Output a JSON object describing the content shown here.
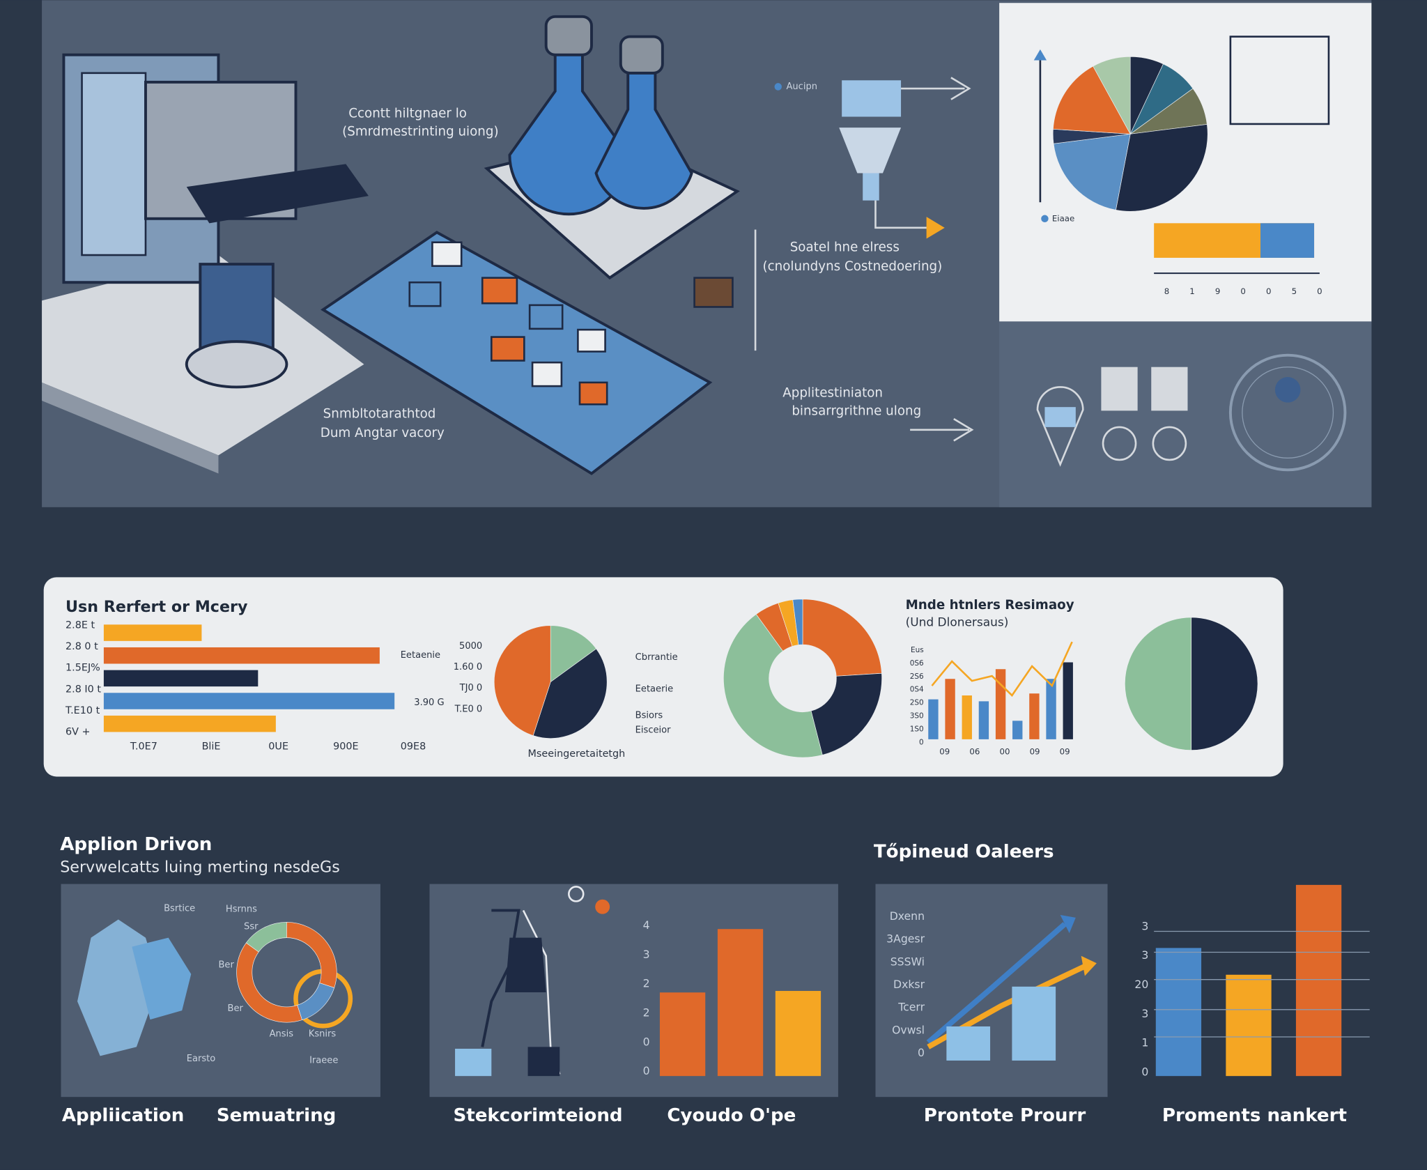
{
  "top": {
    "callouts": [
      [
        "Ccontt hiltgnaer lo",
        "(Smrdmestrinting uiong)"
      ],
      [
        "Soatel hne elress",
        "(cnolundyns Costnedoering)"
      ],
      [
        "Applitestiniaton",
        "binsarrgrithne ulong"
      ],
      [
        "Snmbltotarathtod",
        "Dum Angtar vacory"
      ]
    ],
    "funnel_label": "Aucipn",
    "pie_legend": "Eiaae",
    "pie": {
      "values": [
        7,
        8,
        8,
        30,
        20,
        3,
        16,
        8
      ],
      "colors": [
        "#1e2a44",
        "#2f6b86",
        "#6f7457",
        "#1e2a44",
        "#5a8fc4",
        "#2a3a5c",
        "#e0692a",
        "#a8c8a8"
      ]
    },
    "mini_axis": [
      "8",
      "1",
      "9",
      "0",
      "0",
      "5",
      "0"
    ]
  },
  "middle": {
    "title": "Usn Rerfert or Mcery",
    "bar_chart": {
      "ytick_labels": [
        "2.8E t",
        "2.8 0 t",
        "1.5EJ%",
        "2.8 I0 t",
        "T.E10 t",
        "6V +"
      ],
      "values": [
        33,
        93,
        52,
        98,
        58
      ],
      "colors": [
        "#f5a623",
        "#e0692a",
        "#1e2a44",
        "#4a88c8",
        "#f5a623"
      ],
      "xlim": [
        0,
        100
      ],
      "xtick_labels": [
        "T.0E7",
        "BliE",
        "0UE",
        "900E",
        "09E8"
      ],
      "annotations": [
        "Eetaenie",
        "3.90 G"
      ]
    },
    "pie": {
      "values": [
        15,
        40,
        45
      ],
      "colors": [
        "#8cbf9a",
        "#1e2a44",
        "#e0692a"
      ],
      "left_labels": [
        "5000",
        "1.60 0",
        "TJ0 0",
        "T.E0 0"
      ],
      "right_labels": [
        "Cbrrantie",
        "Eetaerie",
        "Bsiors",
        "Eisceior"
      ],
      "caption": "Mseeingeretaitetgh"
    },
    "donut": {
      "values": [
        24,
        22,
        44,
        5,
        3,
        2
      ],
      "colors": [
        "#e0692a",
        "#1e2a44",
        "#8cbf9a",
        "#e0692a",
        "#f5a623",
        "#4a88c8"
      ]
    },
    "combo": {
      "title": "Mnde htnlers Resimaoy",
      "subtitle": "(Und Dlonersaus)",
      "ytick_labels": [
        "Eus",
        "0S6",
        "2S6",
        "0S4",
        "2S0",
        "3S0",
        "1S0",
        "0"
      ],
      "xtick_labels": [
        "09",
        "06",
        "00",
        "09",
        "09"
      ],
      "values": [
        41,
        62,
        45,
        39,
        72,
        19,
        47,
        62,
        79
      ],
      "colors": [
        "#4a88c8",
        "#e0692a",
        "#f5a623",
        "#4a88c8",
        "#e0692a",
        "#4a88c8",
        "#e0692a",
        "#4a88c8",
        "#1e2a44"
      ],
      "line": [
        55,
        80,
        60,
        65,
        45,
        75,
        55,
        100
      ],
      "ylim": [
        0,
        100
      ]
    },
    "pie2": {
      "values": [
        50,
        50
      ],
      "colors": [
        "#8cbf9a",
        "#1e2a44"
      ]
    }
  },
  "bottom": {
    "heading": "Applion Drivon",
    "subheading": "Servwelcatts luing merting nesdeGs",
    "heading2": "Tőpineud Oaleers",
    "captions": [
      "Appliication",
      "Semuatring",
      "Stekcorimteiond",
      "Cyoudo O'pe",
      "Prontote Prourr",
      "Proments nankert"
    ],
    "panel1_labels": [
      "Bsrtice",
      "Hsrnns",
      "Ssr",
      "Ber",
      "Ber",
      "Ansis",
      "Ksnirs",
      "Earsto",
      "Iraeee"
    ],
    "panel1_donut": {
      "values": [
        40,
        15,
        30,
        15
      ],
      "colors": [
        "#e0692a",
        "#8cbf9a",
        "#e0692a",
        "#5a8fc4"
      ]
    },
    "chart1": {
      "ytick_labels": [
        "4",
        "3",
        "2",
        "2",
        "0",
        "0"
      ],
      "values": [
        54,
        95,
        55
      ],
      "colors": [
        "#e0692a",
        "#e0692a",
        "#f5a623"
      ],
      "ylim": [
        0,
        100
      ]
    },
    "chart2": {
      "ytick_labels": [
        "Dxenn",
        "3Agesr",
        "SSSWi",
        "Dxksr",
        "Tcerr",
        "Ovwsl",
        "0"
      ],
      "values": [
        30,
        65
      ],
      "colors": [
        "#8ec0e6",
        "#8ec0e6"
      ],
      "ylim": [
        0,
        100
      ]
    },
    "chart3": {
      "ytick_labels": [
        "3",
        "3",
        "20",
        "3",
        "1",
        "0"
      ],
      "values": [
        67,
        53,
        100
      ],
      "colors": [
        "#4a88c8",
        "#f5a623",
        "#e0692a"
      ],
      "ylim": [
        0,
        100
      ]
    }
  }
}
